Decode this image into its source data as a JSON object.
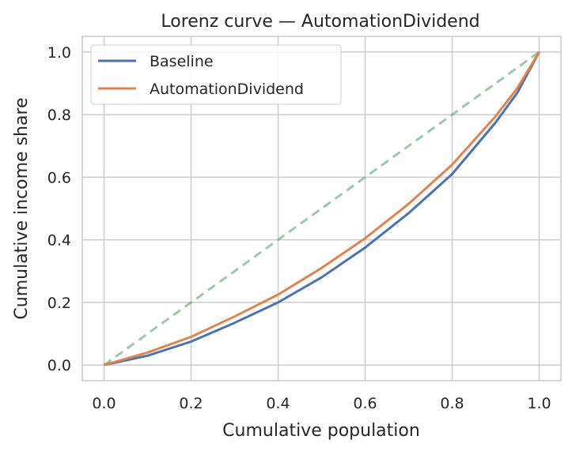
{
  "chart_data": {
    "type": "line",
    "title": "Lorenz curve — AutomationDividend",
    "xlabel": "Cumulative population",
    "ylabel": "Cumulative income share",
    "xlim": [
      -0.05,
      1.05
    ],
    "ylim": [
      -0.05,
      1.05
    ],
    "xticks": [
      "0.0",
      "0.2",
      "0.4",
      "0.6",
      "0.8",
      "1.0"
    ],
    "yticks": [
      "0.0",
      "0.2",
      "0.4",
      "0.6",
      "0.8",
      "1.0"
    ],
    "grid": true,
    "legend_position": "top-left",
    "x": [
      0.0,
      0.1,
      0.2,
      0.3,
      0.4,
      0.5,
      0.6,
      0.7,
      0.8,
      0.9,
      0.95,
      1.0
    ],
    "series": [
      {
        "name": "Baseline",
        "color": "#4c72b0",
        "style": "solid",
        "values": [
          0.0,
          0.03,
          0.075,
          0.135,
          0.2,
          0.28,
          0.375,
          0.485,
          0.61,
          0.775,
          0.87,
          1.0
        ]
      },
      {
        "name": "AutomationDividend",
        "color": "#dd8452",
        "style": "solid",
        "values": [
          0.0,
          0.04,
          0.09,
          0.155,
          0.225,
          0.31,
          0.405,
          0.515,
          0.64,
          0.795,
          0.885,
          1.0
        ]
      },
      {
        "name": "",
        "color": "#55a868",
        "style": "dashed",
        "opacity": 0.6,
        "values": [
          0.0,
          0.1,
          0.2,
          0.3,
          0.4,
          0.5,
          0.6,
          0.7,
          0.8,
          0.9,
          0.95,
          1.0
        ]
      }
    ]
  }
}
